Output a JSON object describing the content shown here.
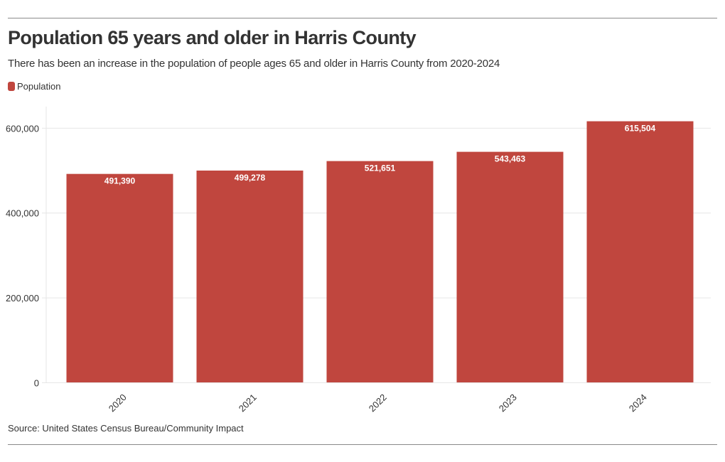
{
  "header": {
    "title": "Population 65 years and older in Harris County",
    "subtitle": "There has been an increase in the population of people ages 65 and older in Harris County from 2020-2024"
  },
  "legend": {
    "label": "Population"
  },
  "footer": {
    "source": "Source: United States Census Bureau/Community Impact"
  },
  "colors": {
    "bar": "#c0463e",
    "grid": "#e6e6e6",
    "text": "#333333",
    "rule": "#8a8a8a"
  },
  "chart_data": {
    "type": "bar",
    "title": "Population 65 years and older in Harris County",
    "subtitle": "There has been an increase in the population of people ages 65 and older in Harris County from 2020-2024",
    "categories": [
      "2020",
      "2021",
      "2022",
      "2023",
      "2024"
    ],
    "series": [
      {
        "name": "Population",
        "values": [
          491390,
          499278,
          521651,
          543463,
          615504
        ]
      }
    ],
    "value_labels": [
      "491,390",
      "499,278",
      "521,651",
      "543,463",
      "615,504"
    ],
    "y_ticks": [
      0,
      200000,
      400000,
      600000
    ],
    "y_tick_labels": [
      "0",
      "200,000",
      "400,000",
      "600,000"
    ],
    "ylim": [
      0,
      650000
    ],
    "grid": true,
    "legend_position": "top-left"
  }
}
